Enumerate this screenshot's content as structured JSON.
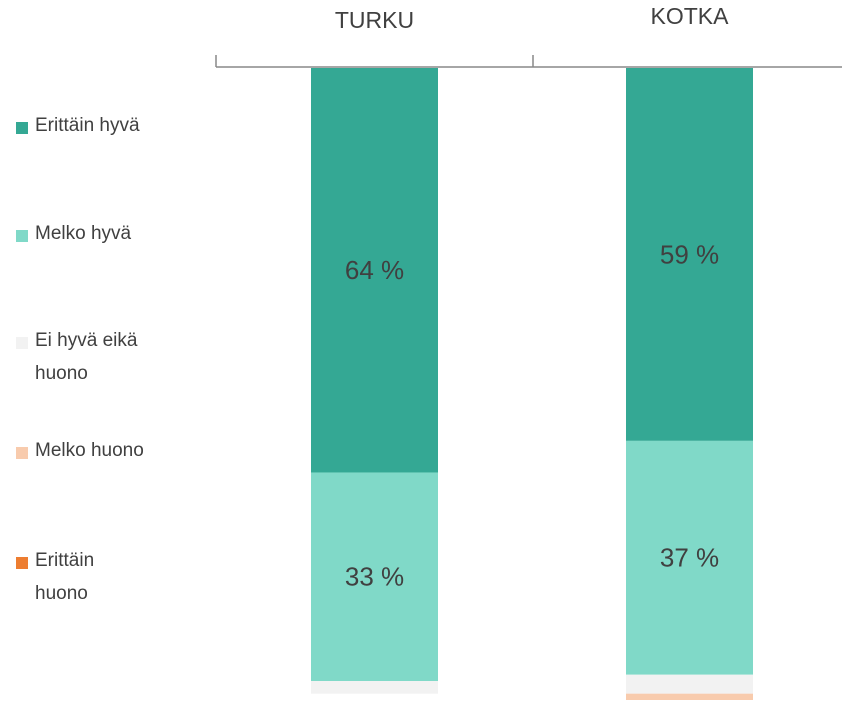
{
  "chart_data": {
    "type": "stacked-bar",
    "categories": [
      "TURKU",
      "KOTKA"
    ],
    "ylim": [
      0,
      100
    ],
    "legend": "left",
    "series": [
      {
        "name": "Erittäin hyvä",
        "color": "#34a894",
        "values": [
          64,
          59
        ],
        "value_labels": [
          "64 %",
          "59 %"
        ]
      },
      {
        "name": "Melko hyvä",
        "color": "#80d9c8",
        "values": [
          33,
          37
        ],
        "value_labels": [
          "33 %",
          "37 %"
        ]
      },
      {
        "name": "Ei hyvä eikä huono",
        "color": "#f2f2f2",
        "values": [
          2,
          3
        ]
      },
      {
        "name": "Melko huono",
        "color": "#f8cbad",
        "values": [
          0,
          1
        ]
      },
      {
        "name": "Erittäin huono",
        "color": "#ed7d31",
        "values": [
          0,
          0
        ]
      }
    ]
  }
}
